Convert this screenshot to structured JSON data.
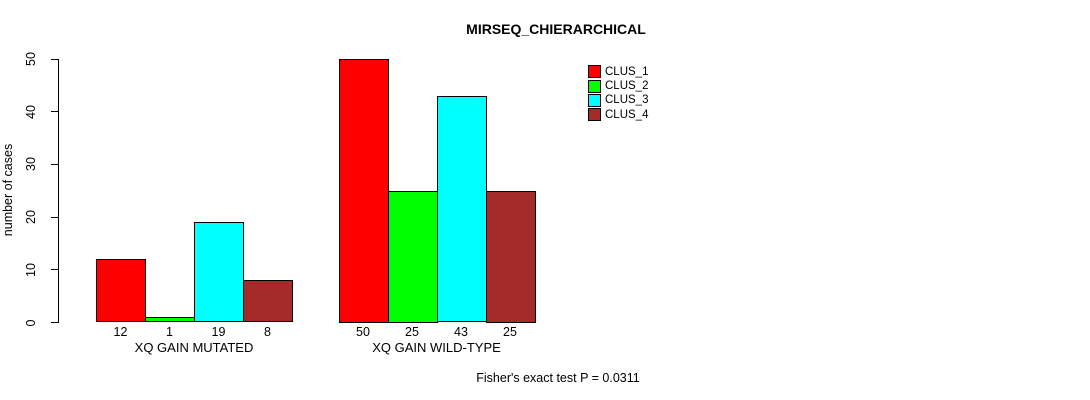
{
  "chart_data": {
    "type": "bar",
    "title": "MIRSEQ_CHIERARCHICAL",
    "ylabel": "number of cases",
    "xlabel": "",
    "categories": [
      "XQ GAIN MUTATED",
      "XQ GAIN WILD-TYPE"
    ],
    "series": [
      {
        "name": "CLUS_1",
        "color": "#ff0000",
        "values": [
          12,
          50
        ]
      },
      {
        "name": "CLUS_2",
        "color": "#00ff00",
        "values": [
          1,
          25
        ]
      },
      {
        "name": "CLUS_3",
        "color": "#00ffff",
        "values": [
          19,
          43
        ]
      },
      {
        "name": "CLUS_4",
        "color": "#a52a2a",
        "values": [
          8,
          25
        ]
      }
    ],
    "bar_value_labels": [
      [
        12,
        1,
        19,
        8
      ],
      [
        50,
        25,
        43,
        25
      ]
    ],
    "yticks": [
      0,
      10,
      20,
      30,
      40,
      50
    ],
    "ylim": [
      0,
      50
    ],
    "grid": false,
    "legend": {
      "position": "top-right",
      "entries": [
        "CLUS_1",
        "CLUS_2",
        "CLUS_3",
        "CLUS_4"
      ]
    },
    "annotation": "Fisher's exact test P = 0.0311",
    "colors": {
      "background": "#ffffff",
      "axis": "#000000",
      "text": "#000000"
    }
  }
}
